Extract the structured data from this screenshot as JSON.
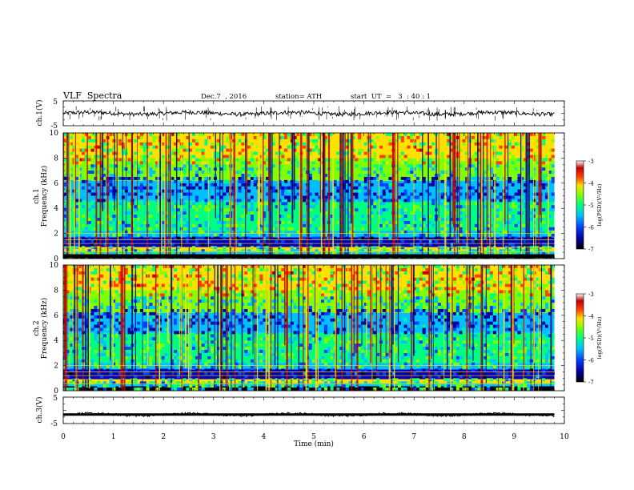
{
  "header": {
    "title": "VLF  Spectra",
    "date": "Dec.7  , 2016",
    "station": "station= ATH",
    "start_ut": "start  UT  =   3  : 40 : 1"
  },
  "chart_data": [
    {
      "type": "line",
      "panel": "ch1-waveform",
      "ylabel": "ch.1(V)",
      "yticks": [
        "5",
        "-5"
      ],
      "ylim": [
        -5,
        5
      ],
      "xlim": [
        0,
        10
      ],
      "trace_level": 0,
      "x_extent": [
        0,
        9.8
      ]
    },
    {
      "type": "heatmap",
      "panel": "ch1-spectrogram",
      "ylabel": "ch.1\nFrequency  (kHz)",
      "ylabel_line1": "ch.1",
      "ylabel_line2": "Frequency  (kHz)",
      "yticks": [
        "0",
        "2",
        "4",
        "6",
        "8",
        "10"
      ],
      "ylim": [
        0,
        10
      ],
      "xlim": [
        0,
        10
      ],
      "x_extent": [
        0,
        9.8
      ],
      "colorbar": {
        "label": "log(PSD)(V²/Hz)",
        "ticks": [
          "-3",
          "-4",
          "-5",
          "-6",
          "-7"
        ],
        "range": [
          -7,
          -3
        ]
      }
    },
    {
      "type": "heatmap",
      "panel": "ch2-spectrogram",
      "ylabel": "ch.2\nFrequency  (kHz)",
      "ylabel_line1": "ch.2",
      "ylabel_line2": "Frequency  (kHz)",
      "yticks": [
        "0",
        "2",
        "4",
        "6",
        "8",
        "10"
      ],
      "ylim": [
        0,
        10
      ],
      "xlim": [
        0,
        10
      ],
      "x_extent": [
        0,
        9.8
      ],
      "colorbar": {
        "label": "log(PSD)(V²/Hz)",
        "ticks": [
          "-3",
          "-4",
          "-5",
          "-6",
          "-7"
        ],
        "range": [
          -7,
          -3
        ]
      }
    },
    {
      "type": "line",
      "panel": "ch3-waveform",
      "ylabel": "ch.3(V)",
      "yticks": [
        "5",
        "-5"
      ],
      "ylim": [
        -5,
        5
      ],
      "xlim": [
        0,
        10
      ],
      "trace_level": -1.6,
      "x_extent": [
        0,
        9.8
      ],
      "xlabel": "Time  (min)",
      "xticks": [
        "0",
        "1",
        "2",
        "3",
        "4",
        "5",
        "6",
        "7",
        "8",
        "9",
        "10"
      ]
    }
  ],
  "colors": {
    "axis": "#000000",
    "trace": "#000000",
    "colormap": [
      "#000000",
      "#0000a0",
      "#0040ff",
      "#00c0ff",
      "#00ff80",
      "#80ff00",
      "#ffe000",
      "#ff4000",
      "#c00000",
      "#ffffff"
    ]
  }
}
